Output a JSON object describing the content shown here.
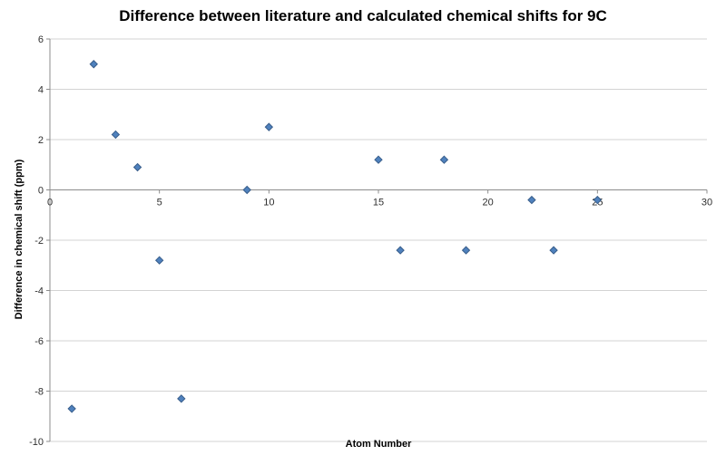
{
  "chart_data": {
    "type": "scatter",
    "title": "Difference between literature and calculated chemical shifts for 9C",
    "xlabel": "Atom Number",
    "ylabel": "Difference in chemical shift (ppm)",
    "xlim": [
      0,
      30
    ],
    "ylim": [
      -10,
      6
    ],
    "x_ticks": [
      0,
      5,
      10,
      15,
      20,
      25,
      30
    ],
    "y_ticks": [
      -10,
      -8,
      -6,
      -4,
      -2,
      0,
      2,
      4,
      6
    ],
    "grid": "horizontal-only",
    "legend": "none",
    "marker": {
      "shape": "diamond",
      "color": "#4F81BD",
      "border": "#385D8A",
      "size": 8
    },
    "colors": {
      "gridline": "#D3D3D3",
      "axis": "#8C8C8C",
      "tick_label": "#2F2F2F",
      "background": "#FFFFFF"
    },
    "points": [
      {
        "x": 1,
        "y": -8.7
      },
      {
        "x": 2,
        "y": 5.0
      },
      {
        "x": 3,
        "y": 2.2
      },
      {
        "x": 4,
        "y": 0.9
      },
      {
        "x": 5,
        "y": -2.8
      },
      {
        "x": 6,
        "y": -8.3
      },
      {
        "x": 9,
        "y": 0.0
      },
      {
        "x": 10,
        "y": 2.5
      },
      {
        "x": 15,
        "y": 1.2
      },
      {
        "x": 16,
        "y": -2.4
      },
      {
        "x": 18,
        "y": 1.2
      },
      {
        "x": 19,
        "y": -2.4
      },
      {
        "x": 22,
        "y": -0.4
      },
      {
        "x": 23,
        "y": -2.4
      },
      {
        "x": 25,
        "y": -0.4
      }
    ]
  }
}
